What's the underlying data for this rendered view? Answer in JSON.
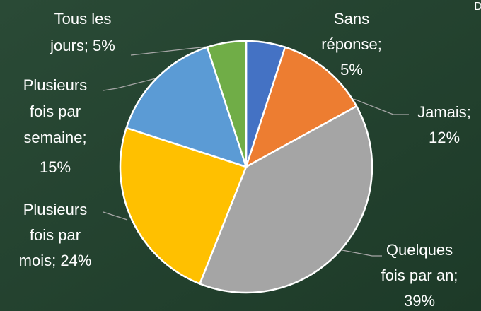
{
  "chart_data": {
    "type": "pie",
    "corner_text": "D",
    "categories": [
      "Sans réponse",
      "Jamais",
      "Quelques fois par an",
      "Plusieurs fois par mois",
      "Plusieurs fois par semaine",
      "Tous les jours"
    ],
    "values": [
      5,
      12,
      39,
      24,
      15,
      5
    ],
    "value_labels": [
      [
        "Sans",
        "réponse;",
        "5%"
      ],
      [
        "Jamais;",
        "12%"
      ],
      [
        "Quelques",
        "fois par an;",
        "39%"
      ],
      [
        "Plusieurs",
        "fois par",
        "mois; 24%"
      ],
      [
        "Plusieurs",
        "fois par",
        "semaine;",
        "15%"
      ],
      [
        "Tous les",
        "jours; 5%"
      ]
    ],
    "colors": [
      "#4472c4",
      "#ed7d31",
      "#a5a5a5",
      "#ffc000",
      "#5b9bd5",
      "#70ad47"
    ]
  }
}
